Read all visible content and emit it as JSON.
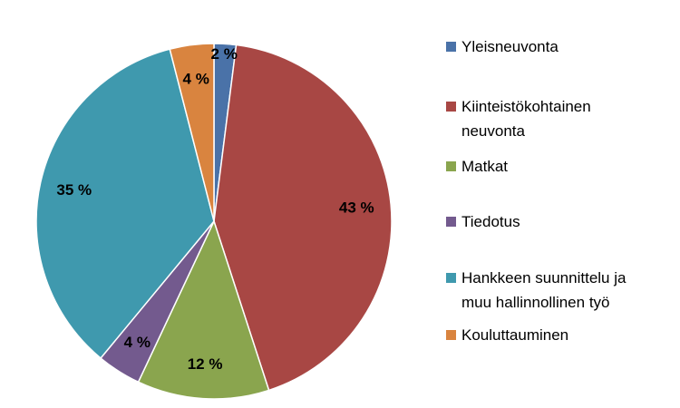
{
  "chart_data": {
    "type": "pie",
    "title": "",
    "legend_position": "right",
    "slices": [
      {
        "name": "Yleisneuvonta",
        "value": 2,
        "label": "2 %",
        "color": "#4a72a8"
      },
      {
        "name": "Kiinteistökohtainen\nneuvonta",
        "value": 43,
        "label": "43 %",
        "color": "#a84744"
      },
      {
        "name": "Matkat",
        "value": 12,
        "label": "12 %",
        "color": "#8aa54e"
      },
      {
        "name": "Tiedotus",
        "value": 4,
        "label": "4 %",
        "color": "#735a8e"
      },
      {
        "name": "Hankkeen suunnittelu ja\nmuu hallinnollinen työ",
        "value": 35,
        "label": "35 %",
        "color": "#3f99ae"
      },
      {
        "name": "Kouluttauminen",
        "value": 4,
        "label": "4 %",
        "color": "#d9843f"
      }
    ]
  }
}
